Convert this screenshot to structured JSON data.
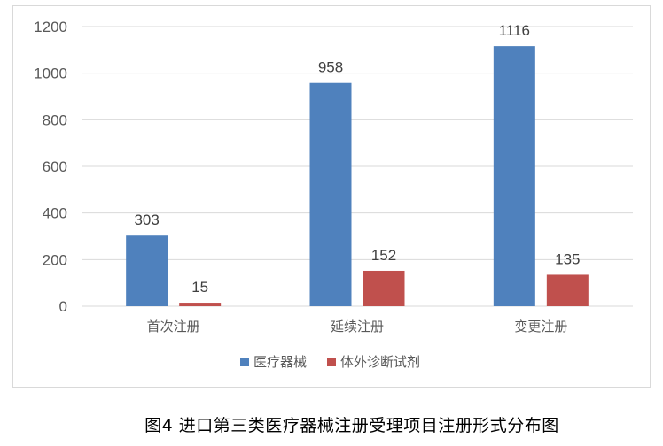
{
  "chart_data": {
    "type": "bar",
    "categories": [
      "首次注册",
      "延续注册",
      "变更注册"
    ],
    "series": [
      {
        "name": "医疗器械",
        "values": [
          303,
          958,
          1116
        ],
        "color": "#4f81bd"
      },
      {
        "name": "体外诊断试剂",
        "values": [
          15,
          152,
          135
        ],
        "color": "#c0504d"
      }
    ],
    "ylim": [
      0,
      1200
    ],
    "yticks": [
      0,
      200,
      400,
      600,
      800,
      1000,
      1200
    ],
    "grid": true,
    "legend_position": "bottom",
    "data_labels": true
  },
  "caption": "图4 进口第三类医疗器械注册受理项目注册形式分布图"
}
